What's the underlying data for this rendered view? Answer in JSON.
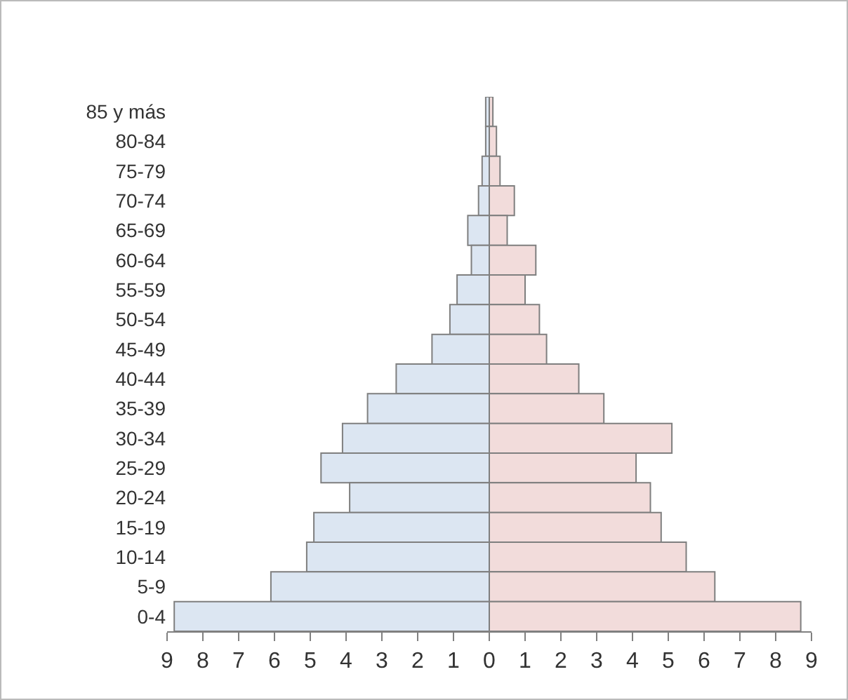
{
  "chart_data": {
    "type": "bar",
    "orientation": "horizontal",
    "categories": [
      "85 y más",
      "80-84",
      "75-79",
      "70-74",
      "65-69",
      "60-64",
      "55-59",
      "50-54",
      "45-49",
      "40-44",
      "35-39",
      "30-34",
      "25-29",
      "20-24",
      "15-19",
      "10-14",
      "5-9",
      "0-4"
    ],
    "series": [
      {
        "color": "#dce6f2",
        "values": [
          -0.1,
          -0.1,
          -0.2,
          -0.3,
          -0.6,
          -0.5,
          -0.9,
          -1.1,
          -1.6,
          -2.6,
          -3.4,
          -4.1,
          -4.7,
          -3.9,
          -4.9,
          -5.1,
          -6.1,
          -8.8
        ]
      },
      {
        "color": "#f2dcdb",
        "values": [
          0.1,
          0.2,
          0.3,
          0.7,
          0.5,
          1.3,
          1.0,
          1.4,
          1.6,
          2.5,
          3.2,
          5.1,
          4.1,
          4.5,
          4.8,
          5.5,
          6.3,
          8.7
        ]
      }
    ],
    "xlim": [
      -9,
      9
    ],
    "xticks": [
      {
        "value": -9,
        "label": "9"
      },
      {
        "value": -8,
        "label": "8"
      },
      {
        "value": -7,
        "label": "7"
      },
      {
        "value": -6,
        "label": "6"
      },
      {
        "value": -5,
        "label": "5"
      },
      {
        "value": -4,
        "label": "4"
      },
      {
        "value": -3,
        "label": "3"
      },
      {
        "value": -2,
        "label": "2"
      },
      {
        "value": -1,
        "label": "1"
      },
      0,
      1,
      2,
      3,
      4,
      5,
      6,
      7,
      8,
      9
    ],
    "stacked": true,
    "grid": false
  }
}
